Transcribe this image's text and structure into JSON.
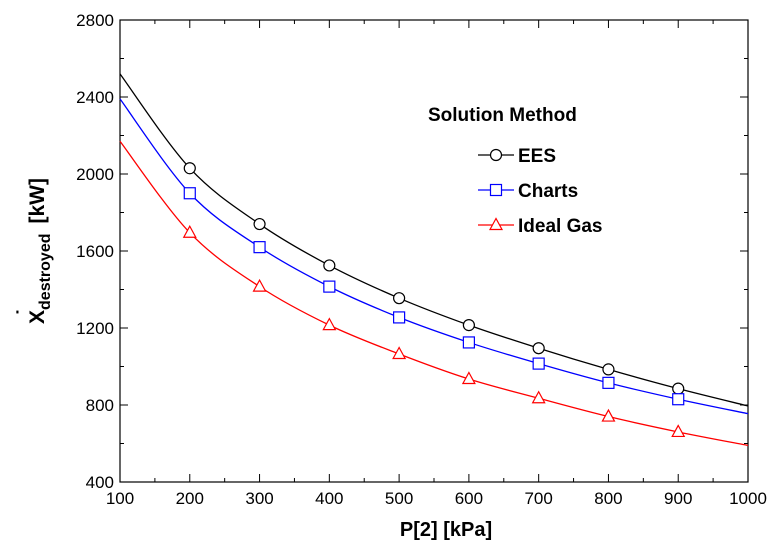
{
  "chart_data": {
    "type": "line",
    "xlabel": "P[2]  [kPa]",
    "ylabel": {
      "base": "X",
      "accent": "˙",
      "subscript": "destroyed",
      "units": "[kW]"
    },
    "xlim": [
      100,
      1000
    ],
    "ylim": [
      400,
      2800
    ],
    "xticks": [
      "100",
      "200",
      "300",
      "400",
      "500",
      "600",
      "700",
      "800",
      "900",
      "1000"
    ],
    "yticks": [
      "400",
      "800",
      "1200",
      "1600",
      "2000",
      "2400",
      "2800"
    ],
    "grid": false,
    "legend": {
      "title": "Solution Method",
      "placement": "upper-right inside plot"
    },
    "series": [
      {
        "name": "EES",
        "color": "#000000",
        "marker": "circle",
        "x": [
          100,
          200,
          300,
          400,
          500,
          600,
          700,
          800,
          900,
          1000
        ],
        "y": [
          2520,
          2030,
          1740,
          1525,
          1355,
          1215,
          1095,
          985,
          885,
          795
        ]
      },
      {
        "name": "Charts",
        "color": "#0000ff",
        "marker": "square",
        "x": [
          100,
          200,
          300,
          400,
          500,
          600,
          700,
          800,
          900,
          1000
        ],
        "y": [
          2390,
          1900,
          1620,
          1415,
          1255,
          1125,
          1015,
          915,
          830,
          755
        ]
      },
      {
        "name": "Ideal Gas",
        "color": "#ff0000",
        "marker": "triangle",
        "x": [
          100,
          200,
          300,
          400,
          500,
          600,
          700,
          800,
          900,
          1000
        ],
        "y": [
          2170,
          1695,
          1415,
          1215,
          1065,
          935,
          835,
          740,
          660,
          590
        ]
      }
    ]
  }
}
